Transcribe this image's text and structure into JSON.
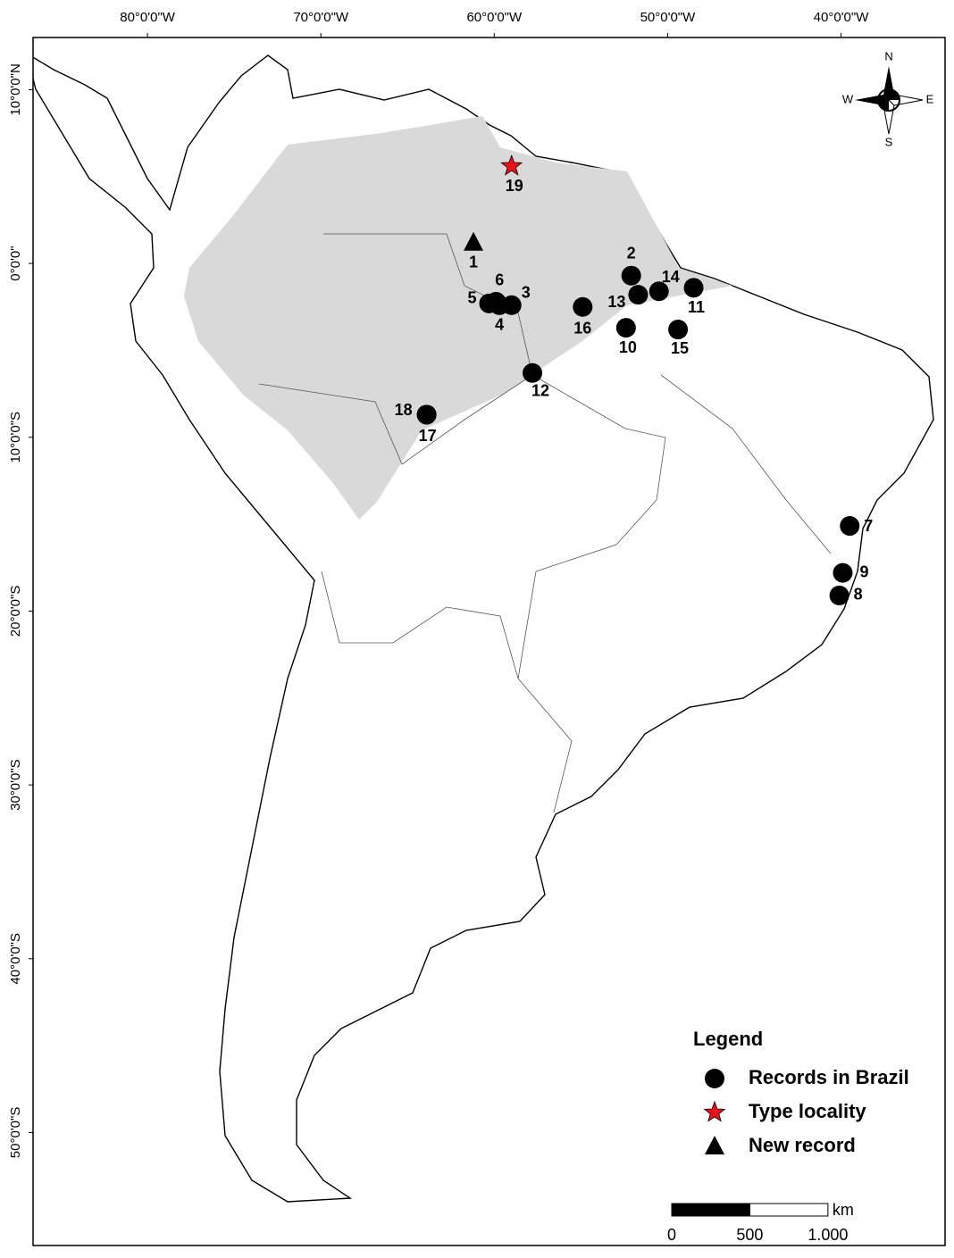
{
  "map": {
    "xlim": [
      -86.6,
      -34.0
    ],
    "ylim": [
      -56.5,
      13.0
    ],
    "xticks": [
      {
        "value": -80,
        "label": "80°0'0\"W"
      },
      {
        "value": -70,
        "label": "70°0'0\"W"
      },
      {
        "value": -60,
        "label": "60°0'0\"W"
      },
      {
        "value": -50,
        "label": "50°0'0\"W"
      },
      {
        "value": -40,
        "label": "40°0'0\"W"
      }
    ],
    "yticks": [
      {
        "value": 10,
        "label": "10°0'0\"N"
      },
      {
        "value": 0,
        "label": "0°0'0\""
      },
      {
        "value": -10,
        "label": "10°0'0\"S"
      },
      {
        "value": -20,
        "label": "20°0'0\"S"
      },
      {
        "value": -30,
        "label": "30°0'0\"S"
      },
      {
        "value": -40,
        "label": "40°0'0\"S"
      },
      {
        "value": -50,
        "label": "50°0'0\"S"
      }
    ],
    "compass": {
      "n": "N",
      "s": "S",
      "e": "E",
      "w": "W"
    },
    "legend": {
      "title": "Legend",
      "groups": [
        {
          "name": "Records in Brazil",
          "marker": "circle",
          "color": "#000000",
          "points": [
            {
              "label": "2",
              "lon": -52.1,
              "lat": -0.7
            },
            {
              "label": "3",
              "lon": -59.0,
              "lat": -2.4
            },
            {
              "label": "4",
              "lon": -59.7,
              "lat": -2.4
            },
            {
              "label": "5",
              "lon": -60.3,
              "lat": -2.3
            },
            {
              "label": "6",
              "lon": -59.9,
              "lat": -2.2
            },
            {
              "label": "7",
              "lon": -39.5,
              "lat": -15.1
            },
            {
              "label": "8",
              "lon": -40.1,
              "lat": -19.1
            },
            {
              "label": "9",
              "lon": -39.9,
              "lat": -17.8
            },
            {
              "label": "10",
              "lon": -52.4,
              "lat": -3.7
            },
            {
              "label": "11",
              "lon": -48.5,
              "lat": -1.4
            },
            {
              "label": "12",
              "lon": -57.8,
              "lat": -6.3
            },
            {
              "label": "13",
              "lon": -51.7,
              "lat": -1.8
            },
            {
              "label": "14",
              "lon": -50.5,
              "lat": -1.6
            },
            {
              "label": "15",
              "lon": -49.4,
              "lat": -3.8
            },
            {
              "label": "16",
              "lon": -54.9,
              "lat": -2.5
            },
            {
              "label": "17",
              "lon": -63.9,
              "lat": -8.7
            },
            {
              "label": "18",
              "lon": -63.9,
              "lat": -8.7
            }
          ]
        },
        {
          "name": "Type locality",
          "marker": "star",
          "color": "#e8121a",
          "points": [
            {
              "label": "19",
              "lon": -59.0,
              "lat": 5.6
            }
          ]
        },
        {
          "name": "New record",
          "marker": "triangle",
          "color": "#000000",
          "points": [
            {
              "label": "1",
              "lon": -61.2,
              "lat": 1.2
            }
          ]
        }
      ]
    },
    "scale_bar": {
      "unit": "km",
      "ticks": [
        {
          "value": 0,
          "label": "0"
        },
        {
          "value": 500,
          "label": "500"
        },
        {
          "value": 1000,
          "label": "1.000"
        }
      ]
    }
  }
}
